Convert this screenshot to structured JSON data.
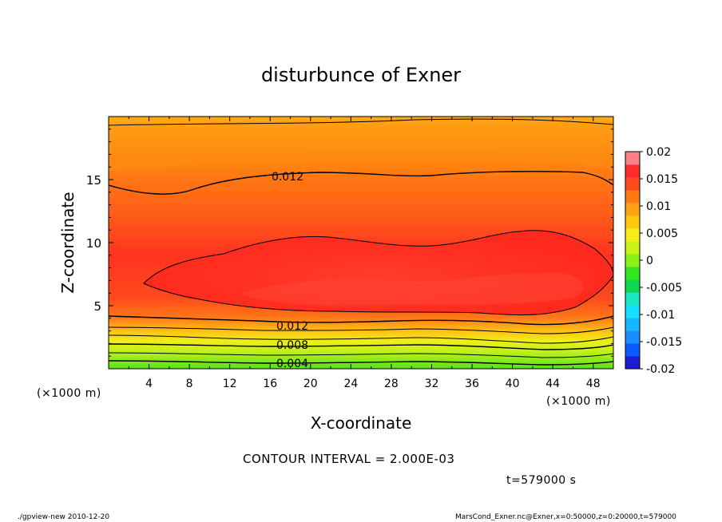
{
  "chart_data": {
    "type": "heatmap",
    "title": "disturbunce of Exner",
    "xlabel": "X-coordinate",
    "ylabel": "Z-coordinate",
    "x_unit": "(×1000 m)",
    "y_unit": "(×1000 m)",
    "xlim": [
      0,
      50
    ],
    "ylim": [
      0,
      20
    ],
    "x_ticks": [
      "4",
      "8",
      "12",
      "16",
      "20",
      "24",
      "28",
      "32",
      "36",
      "40",
      "44",
      "48"
    ],
    "y_ticks": [
      "5",
      "10",
      "15"
    ],
    "colorbar": {
      "ticks": [
        "0.02",
        "0.015",
        "0.01",
        "0.005",
        "0",
        "-0.005",
        "-0.01",
        "-0.015",
        "-0.02"
      ],
      "range": [
        -0.02,
        0.02
      ],
      "levels": [
        -0.02,
        -0.0175,
        -0.015,
        -0.0125,
        -0.01,
        -0.0075,
        -0.005,
        -0.0025,
        0,
        0.0025,
        0.005,
        0.0075,
        0.01,
        0.0125,
        0.015,
        0.0175,
        0.02
      ],
      "colors": [
        "#5a1fa0",
        "#1c1cd0",
        "#0a5aff",
        "#1a8cff",
        "#15b8ff",
        "#16e0ff",
        "#19e8c0",
        "#10d650",
        "#33e61f",
        "#8cf01a",
        "#c8f517",
        "#f5ee16",
        "#ffc710",
        "#ffa114",
        "#ff7a12",
        "#ff4a1b",
        "#ff2a2a",
        "#ff7f86"
      ]
    },
    "contour_labels": [
      "0.012",
      "0.012",
      "0.008",
      "0.004"
    ],
    "contour_interval": "CONTOUR INTERVAL = 2.000E-03",
    "time": "t=579000 s",
    "footer_left": "./gpview-new 2010-12-20",
    "footer_right": "MarsCond_Exner.nc@Exner,x=0:50000,z=0:20000,t=579000",
    "bands_bottom_to_top": [
      {
        "z": 0,
        "value": 0.0035
      },
      {
        "z": 1.2,
        "value": 0.006
      },
      {
        "z": 2.2,
        "value": 0.008
      },
      {
        "z": 3.2,
        "value": 0.01
      },
      {
        "z": 4.2,
        "value": 0.0135
      },
      {
        "z": 6.5,
        "value": 0.016
      },
      {
        "z": 10.5,
        "value": 0.0135
      },
      {
        "z": 15.5,
        "value": 0.011
      },
      {
        "z": 18.5,
        "value": 0.009
      }
    ]
  }
}
